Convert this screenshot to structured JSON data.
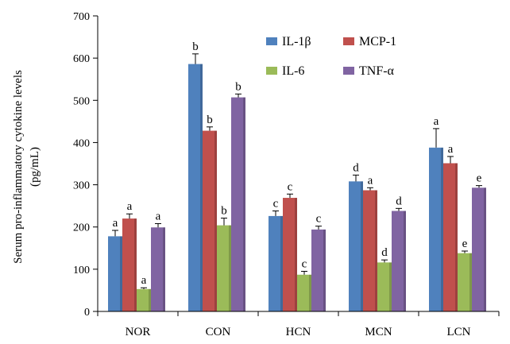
{
  "chart_data": {
    "type": "bar",
    "title": "",
    "xlabel": "",
    "ylabel_line1": "Serum pro-inflammatory cytokine levels",
    "ylabel_line2": "(pg/mL)",
    "ylim": [
      0,
      700
    ],
    "yticks": [
      0,
      100,
      200,
      300,
      400,
      500,
      600,
      700
    ],
    "categories": [
      "NOR",
      "CON",
      "HCN",
      "MCN",
      "LCN"
    ],
    "legend_position": "top-right",
    "series": [
      {
        "name": "IL-1β",
        "color": "#4f81bd",
        "values": [
          178,
          586,
          226,
          308,
          388
        ],
        "errors": [
          14,
          24,
          12,
          15,
          45
        ],
        "labels": [
          "a",
          "b",
          "c",
          "d",
          "a"
        ]
      },
      {
        "name": "MCP-1",
        "color": "#c0504d",
        "values": [
          220,
          428,
          269,
          287,
          351
        ],
        "errors": [
          11,
          9,
          9,
          6,
          16
        ],
        "labels": [
          "a",
          "b",
          "c",
          "a",
          "a"
        ]
      },
      {
        "name": "IL-6",
        "color": "#9bbb59",
        "values": [
          53,
          204,
          87,
          116,
          138
        ],
        "errors": [
          3,
          17,
          8,
          6,
          5
        ],
        "labels": [
          "a",
          "b",
          "c",
          "d",
          "e"
        ]
      },
      {
        "name": "TNF-α",
        "color": "#8064a2",
        "values": [
          199,
          507,
          194,
          238,
          293
        ],
        "errors": [
          9,
          8,
          8,
          6,
          5
        ],
        "labels": [
          "a",
          "b",
          "c",
          "d",
          "e"
        ]
      }
    ]
  }
}
